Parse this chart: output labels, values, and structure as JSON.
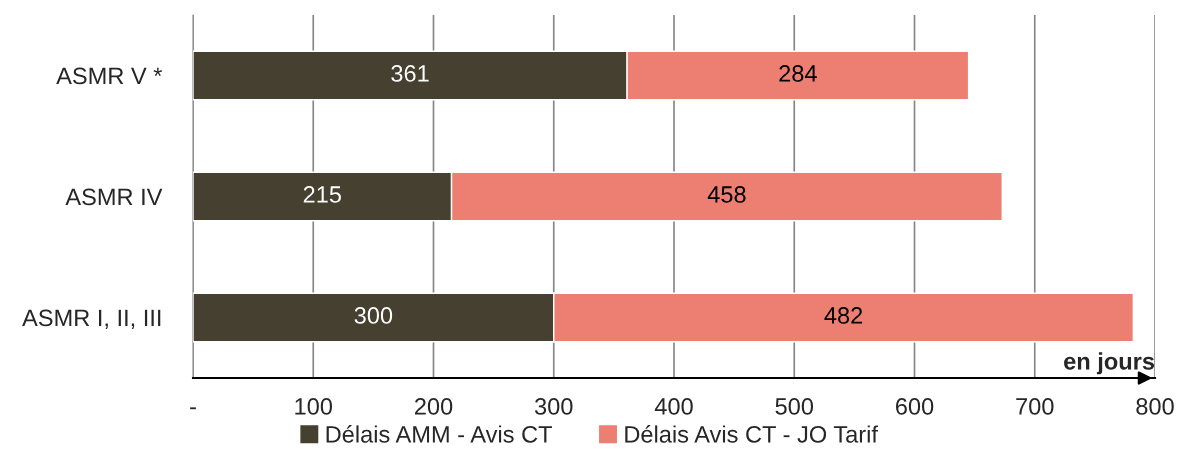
{
  "chart_data": {
    "type": "bar",
    "orientation": "horizontal",
    "stacked": true,
    "categories": [
      "ASMR V *",
      "ASMR IV",
      "ASMR I, II, III"
    ],
    "series": [
      {
        "name": "Délais AMM - Avis CT",
        "color": "#454030",
        "values": [
          361,
          215,
          300
        ]
      },
      {
        "name": "Délais Avis CT - JO Tarif",
        "color": "#ed7f72",
        "values": [
          284,
          458,
          482
        ]
      }
    ],
    "xlim": [
      0,
      800
    ],
    "xticks": [
      {
        "value": 0,
        "label": "-"
      },
      100,
      200,
      300,
      400,
      500,
      600,
      700,
      800
    ],
    "grid": "x",
    "legend": "bottom",
    "data_labels": true,
    "annotations": [
      "en jours"
    ]
  }
}
